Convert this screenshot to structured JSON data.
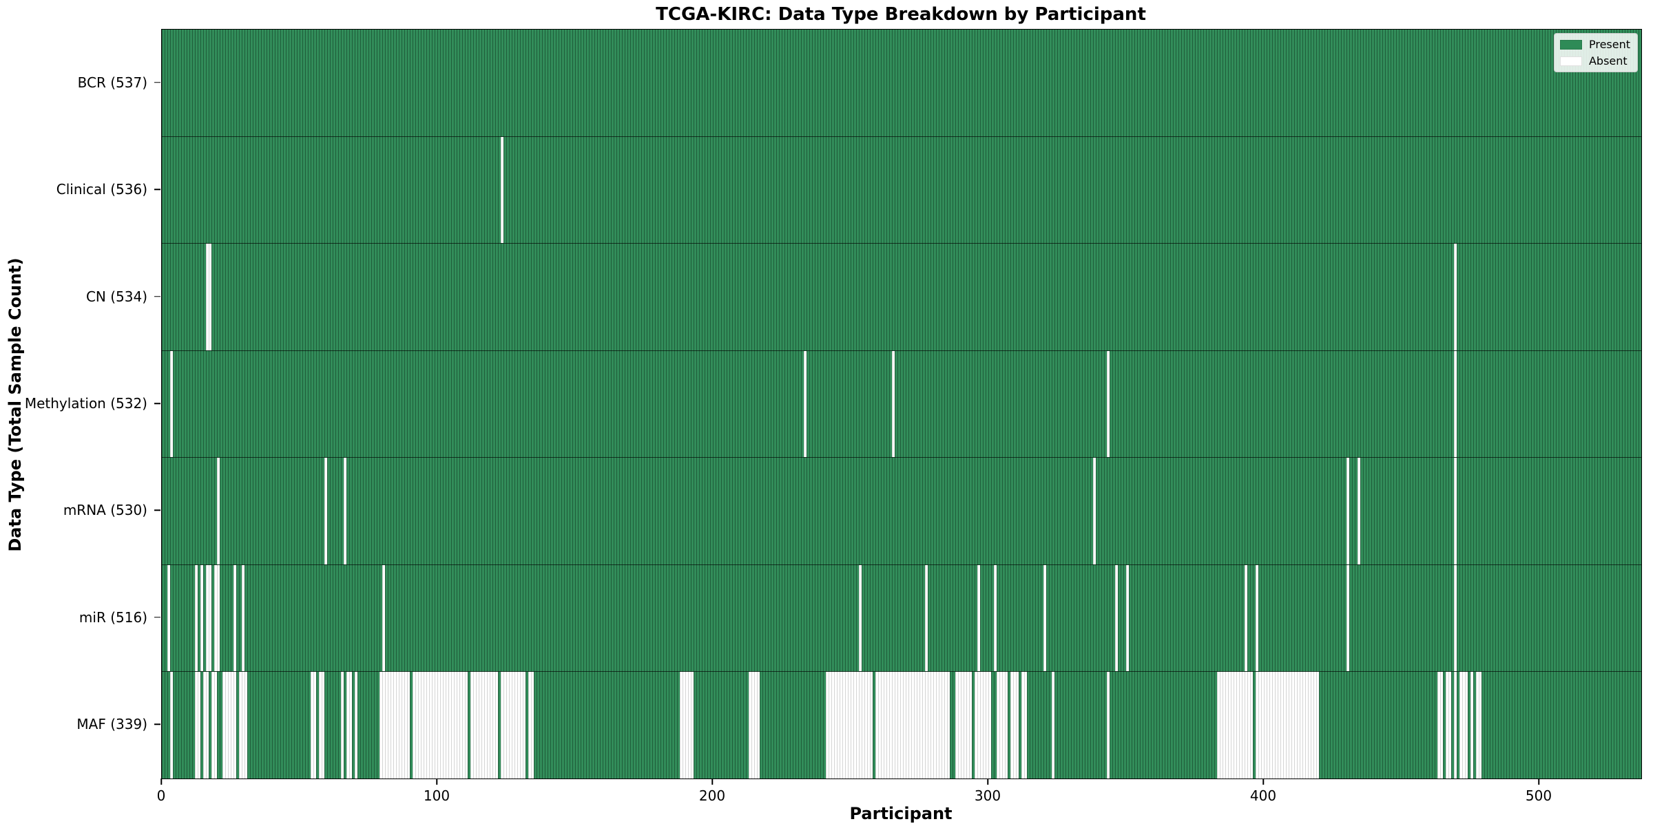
{
  "chart_data": {
    "type": "heatmap",
    "title": "TCGA-KIRC: Data Type Breakdown by Participant",
    "xlabel": "Participant",
    "ylabel": "Data Type (Total Sample Count)",
    "n_participants": 537,
    "x_ticks": [
      0,
      100,
      200,
      300,
      400,
      500
    ],
    "grid": false,
    "legend_position": "upper right",
    "colors": {
      "present": "#2e8b57",
      "absent": "#ffffff",
      "cell_edge_on_present": "rgba(0,0,0,0.33)",
      "cell_edge_on_absent": "#d4d4d4",
      "spine": "#000000"
    },
    "legend": [
      {
        "label": "Present",
        "color": "#2e8b57"
      },
      {
        "label": "Absent",
        "color": "#ffffff"
      }
    ],
    "rows": [
      {
        "key": "bcr",
        "label": "BCR (537)",
        "data_type": "BCR",
        "present_count": 537,
        "absent_ranges": []
      },
      {
        "key": "clinical",
        "label": "Clinical (536)",
        "data_type": "Clinical",
        "present_count": 536,
        "absent_ranges": [
          [
            123,
            123
          ]
        ]
      },
      {
        "key": "cn",
        "label": "CN (534)",
        "data_type": "CN",
        "present_count": 534,
        "absent_ranges": [
          [
            16,
            17
          ],
          [
            469,
            469
          ]
        ]
      },
      {
        "key": "methylation",
        "label": "Methylation (532)",
        "data_type": "Methylation",
        "present_count": 532,
        "absent_ranges": [
          [
            3,
            3
          ],
          [
            233,
            233
          ],
          [
            265,
            265
          ],
          [
            343,
            343
          ],
          [
            469,
            469
          ]
        ]
      },
      {
        "key": "mrna",
        "label": "mRNA (530)",
        "data_type": "mRNA",
        "present_count": 530,
        "absent_ranges": [
          [
            20,
            20
          ],
          [
            59,
            59
          ],
          [
            66,
            66
          ],
          [
            338,
            338
          ],
          [
            430,
            430
          ],
          [
            434,
            434
          ],
          [
            469,
            469
          ]
        ]
      },
      {
        "key": "mir",
        "label": "miR (516)",
        "data_type": "miR",
        "present_count": 516,
        "absent_ranges": [
          [
            2,
            2
          ],
          [
            12,
            12
          ],
          [
            14,
            14
          ],
          [
            16,
            17
          ],
          [
            19,
            20
          ],
          [
            26,
            26
          ],
          [
            29,
            29
          ],
          [
            80,
            80
          ],
          [
            253,
            253
          ],
          [
            277,
            277
          ],
          [
            296,
            296
          ],
          [
            302,
            302
          ],
          [
            320,
            320
          ],
          [
            346,
            346
          ],
          [
            350,
            350
          ],
          [
            393,
            393
          ],
          [
            397,
            397
          ],
          [
            430,
            430
          ],
          [
            469,
            469
          ]
        ]
      },
      {
        "key": "maf",
        "label": "MAF (339)",
        "data_type": "MAF",
        "present_count": 339,
        "absent_ranges": [
          [
            3,
            3
          ],
          [
            12,
            13
          ],
          [
            15,
            16
          ],
          [
            18,
            19
          ],
          [
            22,
            26
          ],
          [
            28,
            30
          ],
          [
            54,
            55
          ],
          [
            57,
            58
          ],
          [
            65,
            65
          ],
          [
            67,
            68
          ],
          [
            70,
            70
          ],
          [
            79,
            89
          ],
          [
            91,
            110
          ],
          [
            112,
            121
          ],
          [
            123,
            131
          ],
          [
            133,
            134
          ],
          [
            188,
            192
          ],
          [
            213,
            216
          ],
          [
            241,
            257
          ],
          [
            259,
            285
          ],
          [
            288,
            293
          ],
          [
            295,
            300
          ],
          [
            303,
            306
          ],
          [
            308,
            310
          ],
          [
            312,
            313
          ],
          [
            323,
            323
          ],
          [
            343,
            343
          ],
          [
            383,
            395
          ],
          [
            397,
            419
          ],
          [
            463,
            464
          ],
          [
            466,
            467
          ],
          [
            469,
            469
          ],
          [
            471,
            473
          ],
          [
            475,
            475
          ],
          [
            477,
            478
          ]
        ]
      }
    ]
  }
}
